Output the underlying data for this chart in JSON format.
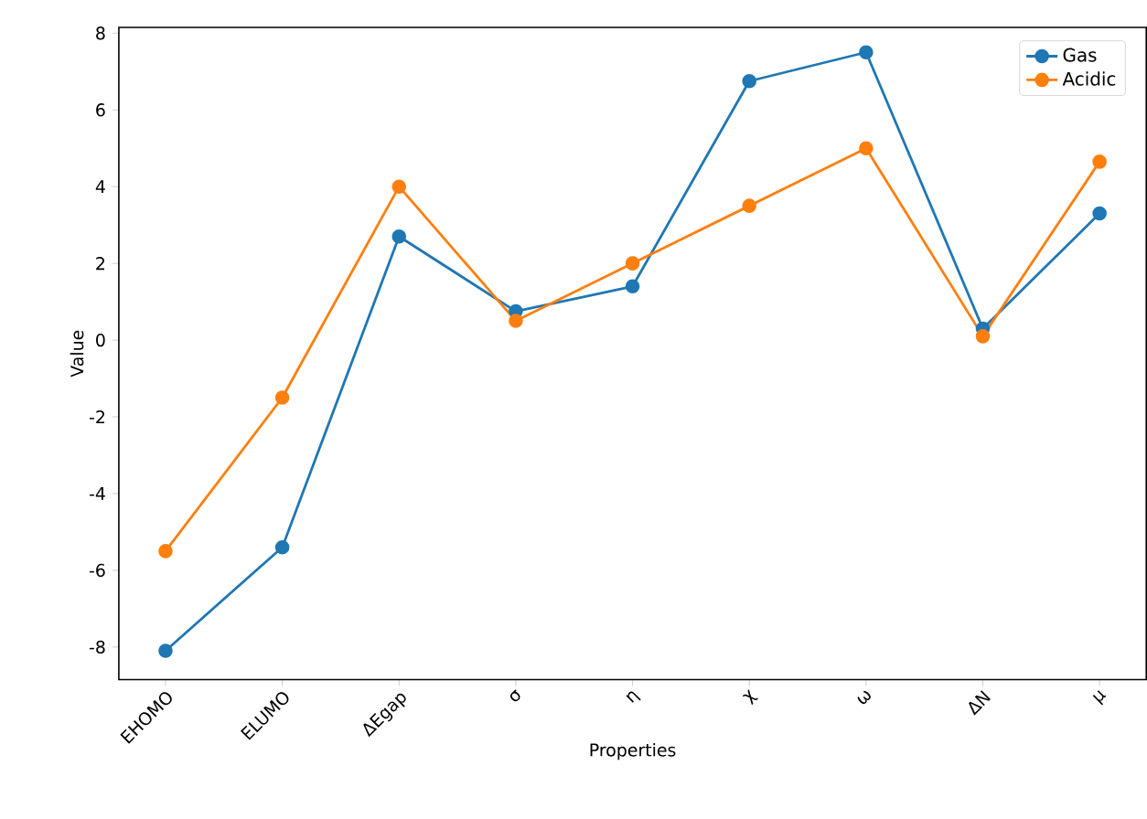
{
  "chart_data": {
    "type": "line",
    "xlabel": "Properties",
    "ylabel": "Value",
    "categories": [
      "EHOMO",
      "ELUMO",
      "ΔEgap",
      "σ",
      "η",
      "χ",
      "ω",
      "ΔN",
      "μ"
    ],
    "series": [
      {
        "name": "Gas",
        "color": "#1f77b4",
        "values": [
          -8.1,
          -5.4,
          2.7,
          0.75,
          1.4,
          6.75,
          7.5,
          0.3,
          3.3
        ]
      },
      {
        "name": "Acidic",
        "color": "#ff7f0e",
        "values": [
          -5.5,
          -1.5,
          4.0,
          0.5,
          2.0,
          3.5,
          5.0,
          0.1,
          4.65
        ]
      }
    ],
    "ylim": [
      -8.85,
      8.15
    ],
    "yticks": [
      -8,
      -6,
      -4,
      -2,
      0,
      2,
      4,
      6,
      8
    ],
    "legend": "top right",
    "marker": "circle",
    "line_style": "solid",
    "grid": false
  }
}
